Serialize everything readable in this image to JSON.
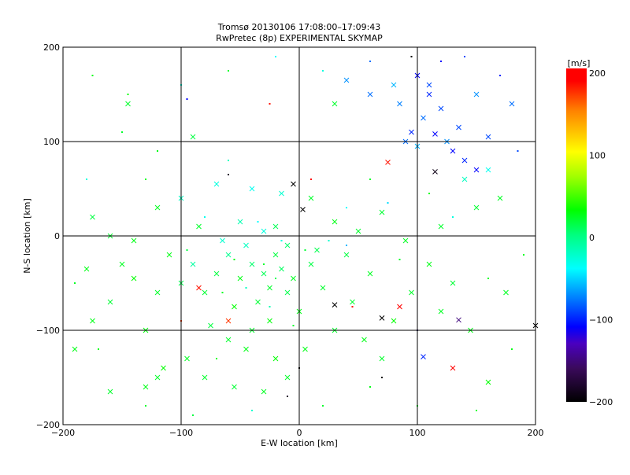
{
  "chart_data": {
    "type": "scatter",
    "title": "Tromsø 20130106 17:08:00–17:09:43",
    "subtitle": "RwPretec (8p) EXPERIMENTAL SKYMAP",
    "xlabel": "E-W location [km]",
    "ylabel": "N-S location [km]",
    "xlim": [
      -200,
      200
    ],
    "ylim": [
      -200,
      200
    ],
    "xticks": [
      "−200",
      "−100",
      "0",
      "100",
      "200"
    ],
    "yticks": [
      "−200",
      "−100",
      "0",
      "100",
      "200"
    ],
    "xtick_values": [
      -200,
      -100,
      0,
      100,
      200
    ],
    "ytick_values": [
      -200,
      -100,
      0,
      100,
      200
    ],
    "grid": true,
    "colorbar": {
      "label": "[m/s]",
      "range": [
        -200,
        200
      ],
      "ticks": [
        "200",
        "100",
        "0",
        "−100",
        "−200"
      ],
      "tick_values": [
        200,
        100,
        0,
        -100,
        -200
      ],
      "stops": [
        [
          -200,
          "#000000"
        ],
        [
          -160,
          "#3a0a5a"
        ],
        [
          -130,
          "#4a00c0"
        ],
        [
          -110,
          "#0000ff"
        ],
        [
          -75,
          "#0080ff"
        ],
        [
          -40,
          "#00ffff"
        ],
        [
          0,
          "#00ff80"
        ],
        [
          30,
          "#00ff00"
        ],
        [
          70,
          "#a0ff00"
        ],
        [
          100,
          "#ffff00"
        ],
        [
          150,
          "#ff8000"
        ],
        [
          185,
          "#ff0000"
        ],
        [
          200,
          "#ff0000"
        ]
      ]
    },
    "points": [
      [
        -30,
        -40,
        10,
        "x"
      ],
      [
        -25,
        -55,
        20,
        "x"
      ],
      [
        -40,
        -30,
        5,
        "x"
      ],
      [
        -20,
        -20,
        15,
        "x"
      ],
      [
        -50,
        -45,
        25,
        "x"
      ],
      [
        -10,
        -60,
        12,
        "x"
      ],
      [
        -35,
        -70,
        18,
        "x"
      ],
      [
        -60,
        -20,
        -5,
        "x"
      ],
      [
        -15,
        -35,
        8,
        "x"
      ],
      [
        -45,
        -10,
        -20,
        "x"
      ],
      [
        -5,
        -45,
        22,
        "x"
      ],
      [
        -70,
        -40,
        15,
        "x"
      ],
      [
        -55,
        -75,
        30,
        "x"
      ],
      [
        -25,
        -90,
        28,
        "x"
      ],
      [
        -40,
        -100,
        20,
        "x"
      ],
      [
        0,
        -80,
        25,
        "x"
      ],
      [
        10,
        -30,
        14,
        "x"
      ],
      [
        -80,
        -60,
        18,
        "x"
      ],
      [
        -65,
        -5,
        -25,
        "x"
      ],
      [
        -30,
        5,
        -30,
        "x"
      ],
      [
        -20,
        10,
        10,
        "x"
      ],
      [
        -50,
        15,
        -15,
        "x"
      ],
      [
        -85,
        10,
        20,
        "x"
      ],
      [
        -10,
        -10,
        5,
        "x"
      ],
      [
        15,
        -15,
        12,
        "x"
      ],
      [
        20,
        -55,
        20,
        "x"
      ],
      [
        -45,
        -120,
        25,
        "x"
      ],
      [
        -20,
        -130,
        30,
        "x"
      ],
      [
        -60,
        -110,
        20,
        "x"
      ],
      [
        -75,
        -95,
        15,
        "x"
      ],
      [
        -90,
        -30,
        -10,
        "x"
      ],
      [
        -100,
        -50,
        12,
        "x"
      ],
      [
        -110,
        -20,
        25,
        "x"
      ],
      [
        -120,
        -60,
        20,
        "x"
      ],
      [
        -140,
        -45,
        30,
        "x"
      ],
      [
        -150,
        -30,
        22,
        "x"
      ],
      [
        -160,
        -70,
        18,
        "x"
      ],
      [
        -175,
        -90,
        25,
        "x"
      ],
      [
        -130,
        -100,
        28,
        "x"
      ],
      [
        -115,
        -140,
        30,
        "x"
      ],
      [
        -95,
        -130,
        22,
        "x"
      ],
      [
        -80,
        -150,
        20,
        "x"
      ],
      [
        -55,
        -160,
        18,
        "x"
      ],
      [
        -30,
        -165,
        22,
        "x"
      ],
      [
        -10,
        -150,
        20,
        "x"
      ],
      [
        5,
        -120,
        25,
        "x"
      ],
      [
        30,
        -100,
        20,
        "x"
      ],
      [
        45,
        -70,
        18,
        "x"
      ],
      [
        60,
        -40,
        22,
        "x"
      ],
      [
        40,
        -20,
        15,
        "x"
      ],
      [
        55,
        -110,
        25,
        "x"
      ],
      [
        70,
        -130,
        20,
        "x"
      ],
      [
        80,
        -90,
        30,
        "x"
      ],
      [
        95,
        -60,
        20,
        "x"
      ],
      [
        110,
        -30,
        25,
        "x"
      ],
      [
        120,
        -80,
        22,
        "x"
      ],
      [
        130,
        -50,
        18,
        "x"
      ],
      [
        145,
        -100,
        25,
        "x"
      ],
      [
        160,
        -155,
        30,
        "x"
      ],
      [
        175,
        -60,
        22,
        "x"
      ],
      [
        -175,
        20,
        15,
        "x"
      ],
      [
        -160,
        0,
        20,
        "x"
      ],
      [
        -140,
        -5,
        25,
        "x"
      ],
      [
        -120,
        30,
        22,
        "x"
      ],
      [
        -100,
        40,
        -20,
        "x"
      ],
      [
        -70,
        55,
        -30,
        "x"
      ],
      [
        -40,
        50,
        -35,
        "x"
      ],
      [
        -15,
        45,
        -25,
        "x"
      ],
      [
        10,
        40,
        20,
        "x"
      ],
      [
        30,
        15,
        25,
        "x"
      ],
      [
        50,
        5,
        20,
        "x"
      ],
      [
        70,
        25,
        18,
        "x"
      ],
      [
        90,
        -5,
        22,
        "x"
      ],
      [
        120,
        10,
        20,
        "x"
      ],
      [
        150,
        30,
        18,
        "x"
      ],
      [
        170,
        40,
        22,
        "x"
      ],
      [
        140,
        60,
        -20,
        "x"
      ],
      [
        160,
        70,
        -35,
        "x"
      ],
      [
        -145,
        140,
        20,
        "x"
      ],
      [
        -160,
        -165,
        20,
        "x"
      ],
      [
        -180,
        -35,
        25,
        "x"
      ],
      [
        -130,
        -160,
        25,
        "x"
      ],
      [
        -90,
        105,
        15,
        "x"
      ],
      [
        30,
        140,
        20,
        "x"
      ],
      [
        80,
        160,
        -60,
        "x"
      ],
      [
        -85,
        -55,
        180,
        "x"
      ],
      [
        -60,
        -90,
        170,
        "x"
      ],
      [
        85,
        -75,
        190,
        "x"
      ],
      [
        75,
        78,
        180,
        "x"
      ],
      [
        130,
        -140,
        190,
        "x"
      ],
      [
        100,
        170,
        -110,
        "x"
      ],
      [
        110,
        150,
        -100,
        "x"
      ],
      [
        120,
        135,
        -90,
        "x"
      ],
      [
        105,
        125,
        -80,
        "x"
      ],
      [
        95,
        110,
        -100,
        "x"
      ],
      [
        115,
        108,
        -110,
        "x"
      ],
      [
        125,
        100,
        -70,
        "x"
      ],
      [
        135,
        115,
        -90,
        "x"
      ],
      [
        100,
        95,
        -60,
        "x"
      ],
      [
        90,
        100,
        -80,
        "x"
      ],
      [
        140,
        80,
        -100,
        "x"
      ],
      [
        130,
        90,
        -110,
        "x"
      ],
      [
        150,
        150,
        -70,
        "x"
      ],
      [
        110,
        160,
        -90,
        "x"
      ],
      [
        85,
        140,
        -75,
        "x"
      ],
      [
        40,
        165,
        -70,
        "x"
      ],
      [
        60,
        150,
        -80,
        "x"
      ],
      [
        150,
        70,
        -110,
        "x"
      ],
      [
        160,
        105,
        -90,
        "x"
      ],
      [
        180,
        140,
        -80,
        "x"
      ],
      [
        -5,
        55,
        -200,
        "x"
      ],
      [
        3,
        28,
        -200,
        "x"
      ],
      [
        30,
        -73,
        -200,
        "x"
      ],
      [
        70,
        -87,
        -200,
        "x"
      ],
      [
        135,
        -89,
        -150,
        "x"
      ],
      [
        115,
        68,
        -190,
        "x"
      ],
      [
        200,
        -95,
        -200,
        "x"
      ],
      [
        105,
        -128,
        -100,
        "x"
      ],
      [
        -120,
        -150,
        20,
        "x"
      ],
      [
        -190,
        -120,
        25,
        "x"
      ],
      [
        -30,
        -30,
        20,
        "d"
      ],
      [
        -20,
        -45,
        10,
        "d"
      ],
      [
        -45,
        -55,
        -20,
        "d"
      ],
      [
        -15,
        -5,
        -30,
        "d"
      ],
      [
        -35,
        15,
        -40,
        "d"
      ],
      [
        -55,
        -25,
        25,
        "d"
      ],
      [
        5,
        -15,
        18,
        "d"
      ],
      [
        -65,
        -60,
        22,
        "d"
      ],
      [
        -25,
        -75,
        -15,
        "d"
      ],
      [
        -5,
        -95,
        20,
        "d"
      ],
      [
        -80,
        20,
        -35,
        "d"
      ],
      [
        -95,
        -15,
        15,
        "d"
      ],
      [
        25,
        -5,
        -25,
        "d"
      ],
      [
        40,
        30,
        -40,
        "d"
      ],
      [
        60,
        60,
        20,
        "d"
      ],
      [
        -60,
        80,
        -20,
        "d"
      ],
      [
        -120,
        90,
        25,
        "d"
      ],
      [
        -150,
        110,
        20,
        "d"
      ],
      [
        -180,
        60,
        -30,
        "d"
      ],
      [
        -190,
        -50,
        22,
        "d"
      ],
      [
        -170,
        -120,
        25,
        "d"
      ],
      [
        -130,
        -180,
        20,
        "d"
      ],
      [
        -90,
        -190,
        15,
        "d"
      ],
      [
        -40,
        -185,
        -25,
        "d"
      ],
      [
        20,
        -180,
        20,
        "d"
      ],
      [
        60,
        -160,
        25,
        "d"
      ],
      [
        100,
        -180,
        22,
        "d"
      ],
      [
        150,
        -185,
        20,
        "d"
      ],
      [
        180,
        -120,
        25,
        "d"
      ],
      [
        190,
        -20,
        22,
        "d"
      ],
      [
        185,
        90,
        -90,
        "d"
      ],
      [
        170,
        170,
        -100,
        "d"
      ],
      [
        140,
        190,
        -90,
        "d"
      ],
      [
        120,
        185,
        -110,
        "d"
      ],
      [
        95,
        190,
        -200,
        "d"
      ],
      [
        60,
        185,
        -80,
        "d"
      ],
      [
        20,
        175,
        -30,
        "d"
      ],
      [
        -20,
        190,
        -40,
        "d"
      ],
      [
        -60,
        175,
        20,
        "d"
      ],
      [
        -100,
        160,
        -30,
        "d"
      ],
      [
        -145,
        150,
        30,
        "d"
      ],
      [
        -175,
        170,
        25,
        "d"
      ],
      [
        -130,
        60,
        22,
        "d"
      ],
      [
        -100,
        -90,
        170,
        "d"
      ],
      [
        10,
        60,
        190,
        "d"
      ],
      [
        -60,
        65,
        -180,
        "d"
      ],
      [
        0,
        -140,
        -200,
        "d"
      ],
      [
        45,
        -75,
        190,
        "d"
      ],
      [
        100,
        -100,
        -140,
        "d"
      ],
      [
        70,
        -150,
        -200,
        "d"
      ],
      [
        -25,
        140,
        180,
        "d"
      ],
      [
        -95,
        145,
        -110,
        "d"
      ],
      [
        -10,
        -170,
        -180,
        "d"
      ],
      [
        40,
        -10,
        -60,
        "d"
      ],
      [
        75,
        35,
        -50,
        "d"
      ],
      [
        85,
        -25,
        20,
        "d"
      ],
      [
        110,
        45,
        25,
        "d"
      ],
      [
        130,
        20,
        -30,
        "d"
      ],
      [
        160,
        -45,
        20,
        "d"
      ],
      [
        -70,
        -130,
        25,
        "d"
      ]
    ]
  }
}
